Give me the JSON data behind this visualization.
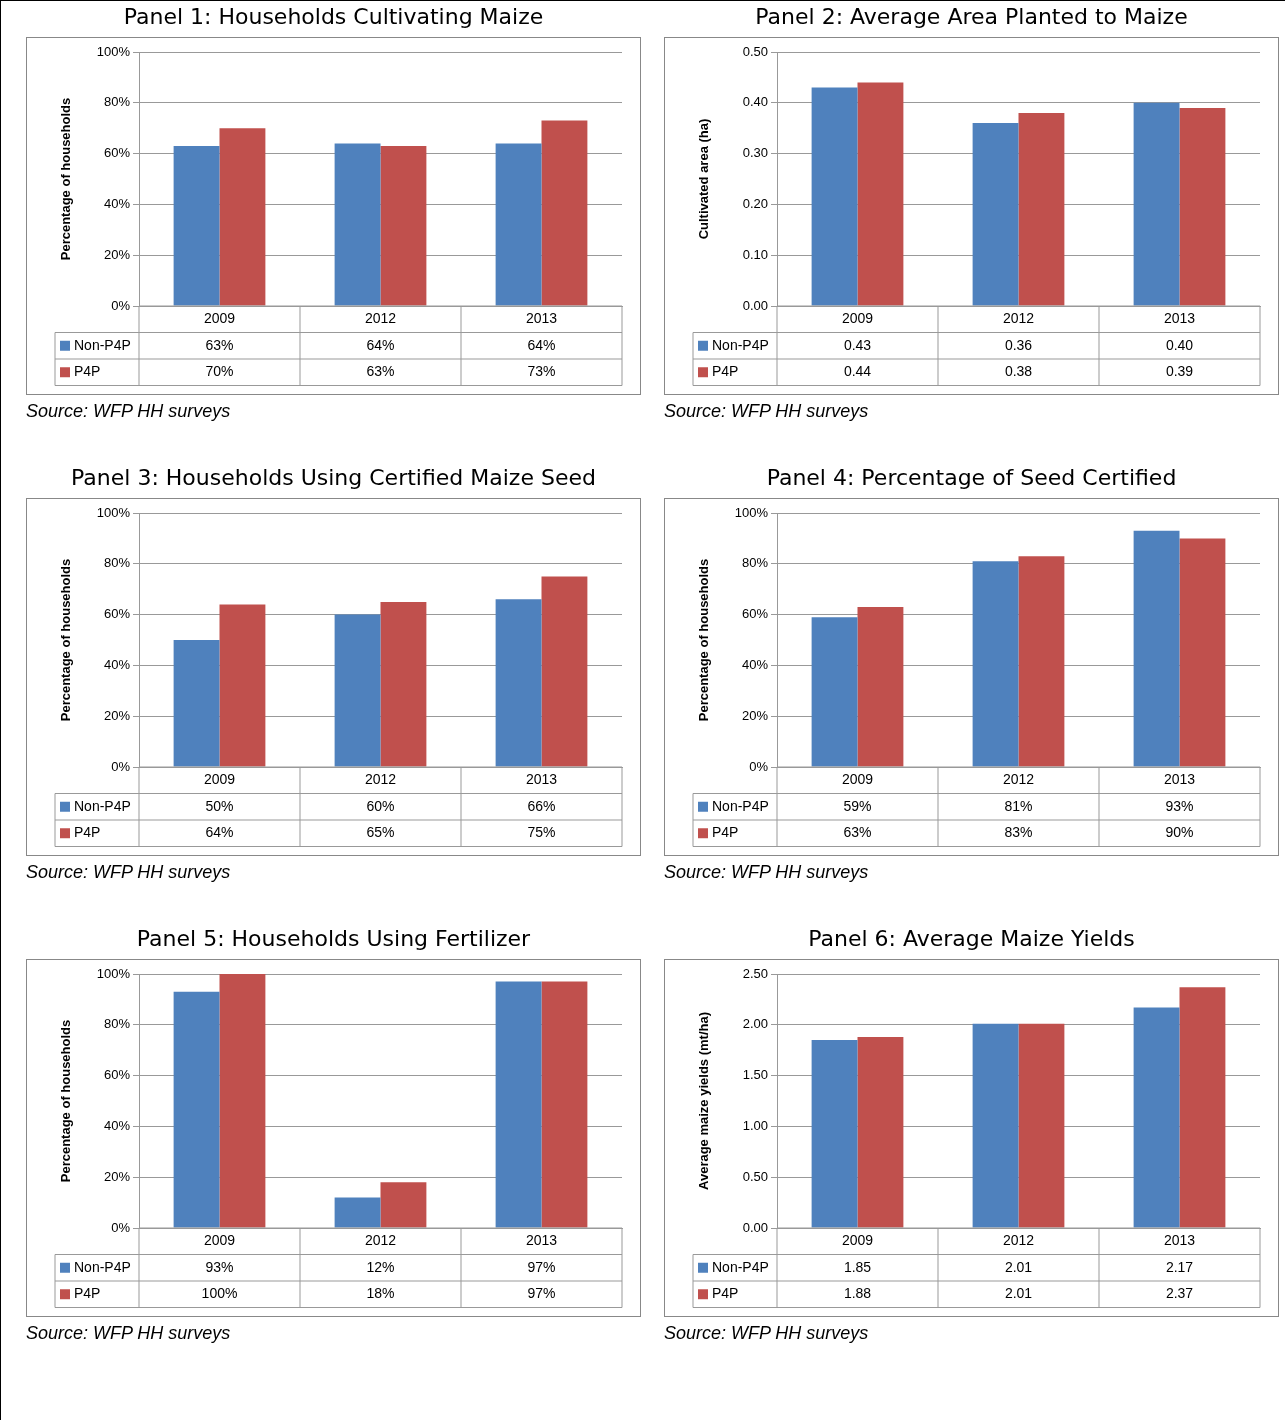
{
  "chart_data": [
    {
      "type": "bar",
      "legend": "bottom left",
      "title": "Panel 1: Households Cultivating Maize",
      "ylabel": "Percentage of households",
      "categories": [
        "2009",
        "2012",
        "2013"
      ],
      "series": [
        {
          "name": "Non-P4P",
          "color": "#4f81bd",
          "values": [
            63,
            64,
            64
          ],
          "value_labels": [
            "63%",
            "64%",
            "64%"
          ]
        },
        {
          "name": "P4P",
          "color": "#c0504d",
          "values": [
            70,
            63,
            73
          ],
          "value_labels": [
            "70%",
            "63%",
            "73%"
          ]
        }
      ],
      "ylim": [
        0,
        100
      ],
      "yticks": [
        {
          "value": 0,
          "label": "0%"
        },
        {
          "value": 20,
          "label": "20%"
        },
        {
          "value": 40,
          "label": "40%"
        },
        {
          "value": 60,
          "label": "60%"
        },
        {
          "value": 80,
          "label": "80%"
        },
        {
          "value": 100,
          "label": "100%"
        }
      ],
      "grid": "y",
      "annotations": [
        "Source: WFP HH surveys"
      ]
    },
    {
      "type": "bar",
      "legend": "bottom left",
      "title": "Panel 2: Average Area Planted to Maize",
      "ylabel": "Cultivated area (ha)",
      "categories": [
        "2009",
        "2012",
        "2013"
      ],
      "series": [
        {
          "name": "Non-P4P",
          "color": "#4f81bd",
          "values": [
            0.43,
            0.36,
            0.4
          ],
          "value_labels": [
            "0.43",
            "0.36",
            "0.40"
          ]
        },
        {
          "name": "P4P",
          "color": "#c0504d",
          "values": [
            0.44,
            0.38,
            0.39
          ],
          "value_labels": [
            "0.44",
            "0.38",
            "0.39"
          ]
        }
      ],
      "ylim": [
        0,
        0.5
      ],
      "yticks": [
        {
          "value": 0,
          "label": "0.00"
        },
        {
          "value": 0.1,
          "label": "0.10"
        },
        {
          "value": 0.2,
          "label": "0.20"
        },
        {
          "value": 0.3,
          "label": "0.30"
        },
        {
          "value": 0.4,
          "label": "0.40"
        },
        {
          "value": 0.5,
          "label": "0.50"
        }
      ],
      "grid": "y",
      "annotations": [
        "Source: WFP HH surveys"
      ]
    },
    {
      "type": "bar",
      "legend": "bottom left",
      "title": "Panel 3: Households Using Certified Maize Seed",
      "ylabel": "Percentage of households",
      "categories": [
        "2009",
        "2012",
        "2013"
      ],
      "series": [
        {
          "name": "Non-P4P",
          "color": "#4f81bd",
          "values": [
            50,
            60,
            66
          ],
          "value_labels": [
            "50%",
            "60%",
            "66%"
          ]
        },
        {
          "name": "P4P",
          "color": "#c0504d",
          "values": [
            64,
            65,
            75
          ],
          "value_labels": [
            "64%",
            "65%",
            "75%"
          ]
        }
      ],
      "ylim": [
        0,
        100
      ],
      "yticks": [
        {
          "value": 0,
          "label": "0%"
        },
        {
          "value": 20,
          "label": "20%"
        },
        {
          "value": 40,
          "label": "40%"
        },
        {
          "value": 60,
          "label": "60%"
        },
        {
          "value": 80,
          "label": "80%"
        },
        {
          "value": 100,
          "label": "100%"
        }
      ],
      "grid": "y",
      "annotations": [
        "Source: WFP HH surveys"
      ]
    },
    {
      "type": "bar",
      "legend": "bottom left",
      "title": "Panel 4: Percentage of Seed Certified",
      "ylabel": "Percentage of households",
      "categories": [
        "2009",
        "2012",
        "2013"
      ],
      "series": [
        {
          "name": "Non-P4P",
          "color": "#4f81bd",
          "values": [
            59,
            81,
            93
          ],
          "value_labels": [
            "59%",
            "81%",
            "93%"
          ]
        },
        {
          "name": "P4P",
          "color": "#c0504d",
          "values": [
            63,
            83,
            90
          ],
          "value_labels": [
            "63%",
            "83%",
            "90%"
          ]
        }
      ],
      "ylim": [
        0,
        100
      ],
      "yticks": [
        {
          "value": 0,
          "label": "0%"
        },
        {
          "value": 20,
          "label": "20%"
        },
        {
          "value": 40,
          "label": "40%"
        },
        {
          "value": 60,
          "label": "60%"
        },
        {
          "value": 80,
          "label": "80%"
        },
        {
          "value": 100,
          "label": "100%"
        }
      ],
      "grid": "y",
      "annotations": [
        "Source: WFP HH surveys"
      ]
    },
    {
      "type": "bar",
      "legend": "bottom left",
      "title": "Panel 5: Households Using Fertilizer",
      "ylabel": "Percentage of households",
      "categories": [
        "2009",
        "2012",
        "2013"
      ],
      "series": [
        {
          "name": "Non-P4P",
          "color": "#4f81bd",
          "values": [
            93,
            12,
            97
          ],
          "value_labels": [
            "93%",
            "12%",
            "97%"
          ]
        },
        {
          "name": "P4P",
          "color": "#c0504d",
          "values": [
            100,
            18,
            97
          ],
          "value_labels": [
            "100%",
            "18%",
            "97%"
          ]
        }
      ],
      "ylim": [
        0,
        100
      ],
      "yticks": [
        {
          "value": 0,
          "label": "0%"
        },
        {
          "value": 20,
          "label": "20%"
        },
        {
          "value": 40,
          "label": "40%"
        },
        {
          "value": 60,
          "label": "60%"
        },
        {
          "value": 80,
          "label": "80%"
        },
        {
          "value": 100,
          "label": "100%"
        }
      ],
      "grid": "y",
      "annotations": [
        "Source: WFP HH surveys"
      ]
    },
    {
      "type": "bar",
      "legend": "bottom left",
      "title": "Panel 6: Average Maize Yields",
      "ylabel": "Average maize yields (mt/ha)",
      "categories": [
        "2009",
        "2012",
        "2013"
      ],
      "series": [
        {
          "name": "Non-P4P",
          "color": "#4f81bd",
          "values": [
            1.85,
            2.01,
            2.17
          ],
          "value_labels": [
            "1.85",
            "2.01",
            "2.17"
          ]
        },
        {
          "name": "P4P",
          "color": "#c0504d",
          "values": [
            1.88,
            2.01,
            2.37
          ],
          "value_labels": [
            "1.88",
            "2.01",
            "2.37"
          ]
        }
      ],
      "ylim": [
        0,
        2.5
      ],
      "yticks": [
        {
          "value": 0,
          "label": "0.00"
        },
        {
          "value": 0.5,
          "label": "0.50"
        },
        {
          "value": 1,
          "label": "1.00"
        },
        {
          "value": 1.5,
          "label": "1.50"
        },
        {
          "value": 2,
          "label": "2.00"
        },
        {
          "value": 2.5,
          "label": "2.50"
        }
      ],
      "grid": "y",
      "annotations": [
        "Source: WFP HH surveys"
      ]
    }
  ]
}
